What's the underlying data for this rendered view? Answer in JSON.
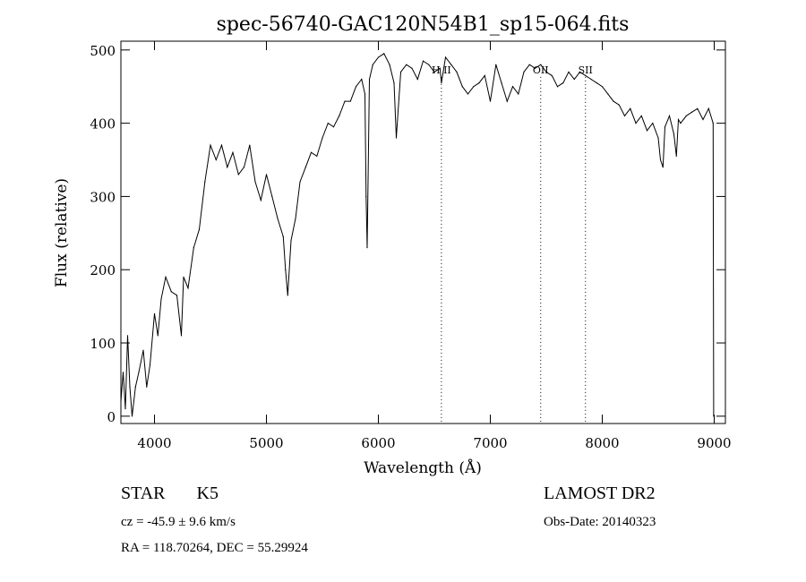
{
  "chart_data": {
    "type": "line",
    "title": "spec-56740-GAC120N54B1_sp15-064.fits",
    "xlabel": "Wavelength (Å)",
    "ylabel": "Flux (relative)",
    "xlim": [
      3700,
      9100
    ],
    "ylim": [
      -10,
      512
    ],
    "x_ticks": [
      4000,
      5000,
      6000,
      7000,
      8000,
      9000
    ],
    "y_ticks": [
      0,
      100,
      200,
      300,
      400,
      500
    ],
    "grid": false,
    "series": [
      {
        "x": [
          3700,
          3720,
          3740,
          3760,
          3780,
          3800,
          3830,
          3860,
          3900,
          3930,
          3960,
          4000,
          4030,
          4060,
          4100,
          4150,
          4200,
          4240,
          4260,
          4300,
          4350,
          4400,
          4450,
          4500,
          4550,
          4600,
          4650,
          4700,
          4750,
          4800,
          4850,
          4900,
          4950,
          5000,
          5050,
          5100,
          5150,
          5170,
          5190,
          5220,
          5260,
          5300,
          5350,
          5400,
          5450,
          5500,
          5550,
          5600,
          5650,
          5700,
          5750,
          5800,
          5850,
          5880,
          5890,
          5900,
          5920,
          5950,
          6000,
          6050,
          6100,
          6140,
          6160,
          6200,
          6250,
          6300,
          6350,
          6400,
          6450,
          6500,
          6550,
          6563,
          6600,
          6650,
          6700,
          6750,
          6800,
          6850,
          6900,
          6950,
          7000,
          7050,
          7100,
          7150,
          7200,
          7250,
          7300,
          7350,
          7400,
          7450,
          7500,
          7550,
          7600,
          7650,
          7700,
          7750,
          7800,
          7850,
          7900,
          7950,
          8000,
          8050,
          8100,
          8150,
          8200,
          8250,
          8300,
          8350,
          8400,
          8450,
          8500,
          8520,
          8542,
          8560,
          8600,
          8640,
          8662,
          8680,
          8700,
          8750,
          8800,
          8850,
          8900,
          8950,
          8990,
          8995
        ],
        "y": [
          20,
          60,
          10,
          110,
          40,
          0,
          40,
          60,
          90,
          40,
          70,
          140,
          110,
          160,
          190,
          170,
          165,
          110,
          190,
          175,
          230,
          255,
          320,
          370,
          350,
          370,
          340,
          360,
          330,
          340,
          370,
          320,
          295,
          330,
          300,
          270,
          245,
          200,
          165,
          240,
          270,
          320,
          340,
          360,
          355,
          380,
          400,
          395,
          410,
          430,
          430,
          450,
          460,
          440,
          300,
          230,
          460,
          480,
          490,
          495,
          480,
          455,
          380,
          470,
          480,
          475,
          460,
          485,
          480,
          470,
          475,
          455,
          490,
          480,
          470,
          450,
          440,
          450,
          455,
          465,
          430,
          480,
          455,
          430,
          450,
          440,
          470,
          480,
          475,
          480,
          470,
          465,
          450,
          455,
          470,
          460,
          470,
          465,
          460,
          455,
          450,
          440,
          430,
          425,
          410,
          420,
          400,
          410,
          390,
          400,
          380,
          350,
          340,
          395,
          410,
          385,
          355,
          405,
          400,
          410,
          415,
          420,
          405,
          420,
          400,
          0
        ]
      }
    ],
    "reference_lines": [
      {
        "x": 6563,
        "label": "H II"
      },
      {
        "x": 7450,
        "label": "OII"
      },
      {
        "x": 7850,
        "label": "SII"
      }
    ]
  },
  "info": {
    "object_class": "STAR",
    "subclass": "K5",
    "velocity": "cz = -45.9 ± 9.6 km/s",
    "coords": "RA = 118.70264, DEC =  55.29924",
    "survey": "LAMOST DR2",
    "obs_date": "Obs-Date: 20140323"
  }
}
